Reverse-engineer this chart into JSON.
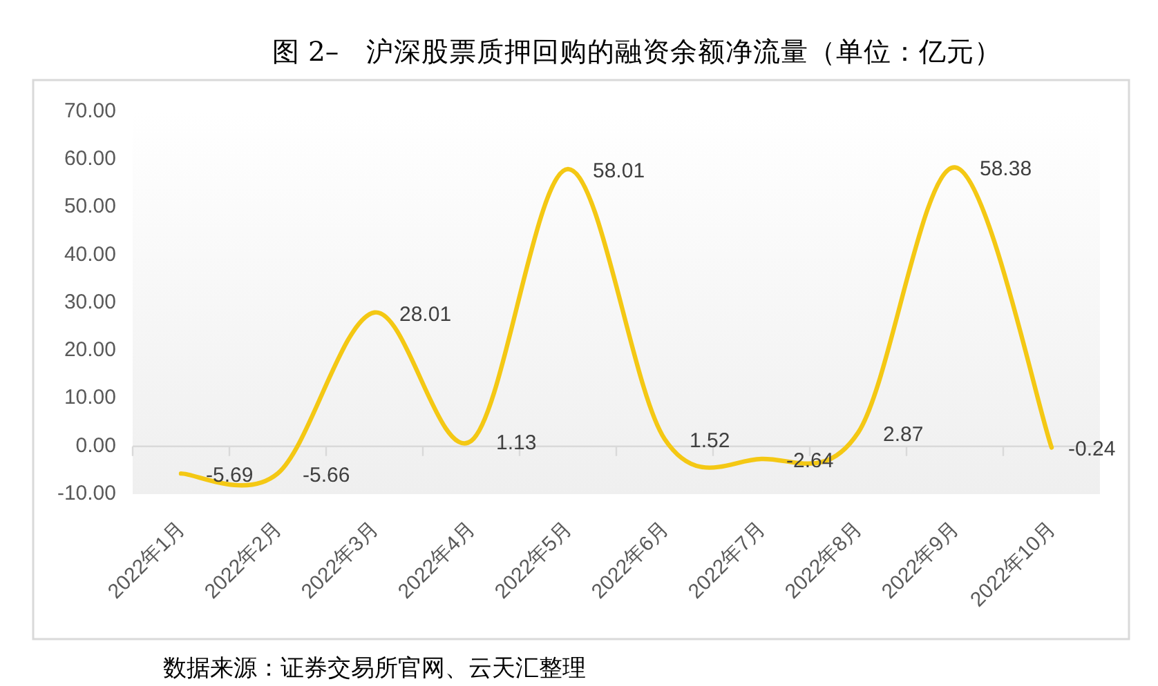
{
  "chart_data": {
    "type": "line",
    "title": "图 2–　沪深股票质押回购的融资余额净流量（单位：亿元）",
    "categories": [
      "2022年1月",
      "2022年2月",
      "2022年3月",
      "2022年4月",
      "2022年5月",
      "2022年6月",
      "2022年7月",
      "2022年8月",
      "2022年9月",
      "2022年10月"
    ],
    "series": [
      {
        "color": "#f4c814",
        "values": [
          -5.69,
          -5.66,
          28.01,
          1.13,
          58.01,
          1.52,
          -2.64,
          2.87,
          58.38,
          -0.24
        ]
      }
    ],
    "ylim": [
      -10,
      70
    ],
    "yticks": [
      {
        "value": -10,
        "label": "-10.00"
      },
      {
        "value": 0,
        "label": "0.00"
      },
      {
        "value": 10,
        "label": "10.00"
      },
      {
        "value": 20,
        "label": "20.00"
      },
      {
        "value": 30,
        "label": "30.00"
      },
      {
        "value": 40,
        "label": "40.00"
      },
      {
        "value": 50,
        "label": "50.00"
      },
      {
        "value": 60,
        "label": "60.00"
      },
      {
        "value": 70,
        "label": "70.00"
      }
    ],
    "data_labels": true,
    "marker": "none",
    "line_style": "solid",
    "annotations": [
      "数据来源：证券交易所官网、云天汇整理"
    ]
  }
}
